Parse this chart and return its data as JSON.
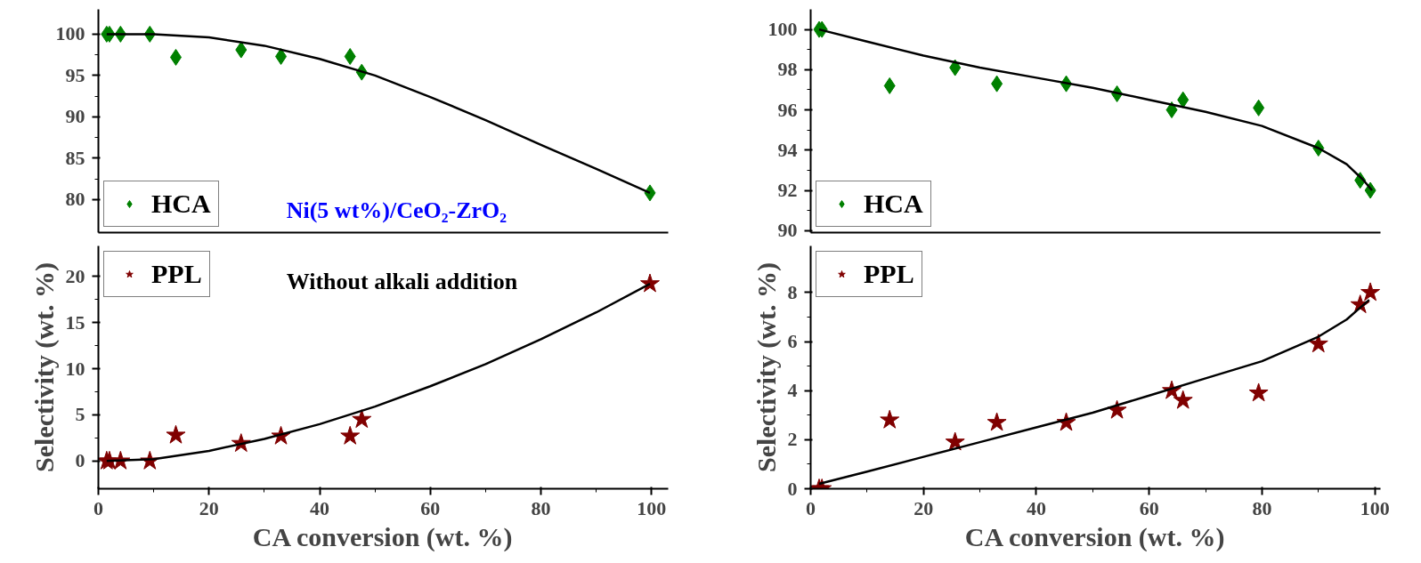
{
  "chart_data": [
    {
      "type": "scatter",
      "xlim": [
        0,
        103
      ],
      "ylim": [
        76,
        103
      ],
      "yticks": [
        80,
        85,
        90,
        95,
        100
      ],
      "tick_labels": "y",
      "legend": "bottom left",
      "annotations": [
        "Ni(5 wt%)/CeO₂-ZrO₂"
      ],
      "series": [
        {
          "name": "HCA",
          "color": "#008000",
          "marker": "diamond",
          "x": [
            1.5,
            2,
            4,
            9.3,
            14,
            25.8,
            33,
            45.5,
            47.6,
            99.7
          ],
          "values": [
            100,
            100,
            100,
            100,
            97.2,
            98.1,
            97.3,
            97.3,
            95.4,
            80.8
          ]
        },
        {
          "type": "line",
          "color": "#000000",
          "marker": "none",
          "x": [
            1.5,
            10,
            20,
            30,
            40,
            50,
            60,
            70,
            80,
            90,
            99.7
          ],
          "values": [
            100,
            100,
            99.6,
            98.6,
            97.0,
            95.0,
            92.4,
            89.6,
            86.6,
            83.7,
            80.8
          ]
        }
      ]
    },
    {
      "type": "scatter",
      "xlim": [
        0,
        103
      ],
      "ylim": [
        -3,
        23.3
      ],
      "xticks": [
        0,
        20,
        40,
        60,
        80,
        100
      ],
      "yticks": [
        0,
        5,
        10,
        15,
        20
      ],
      "xlabel": "CA conversion (wt. %)",
      "ylabel": "Selectivity (wt. %)",
      "legend": "top left",
      "annotations": [
        "Without alkali addition"
      ],
      "series": [
        {
          "name": "PPL",
          "color": "#800000",
          "marker": "star",
          "x": [
            1.5,
            2,
            4,
            9.3,
            14,
            25.8,
            33,
            45.5,
            47.6,
            99.7
          ],
          "values": [
            0,
            0,
            0,
            0,
            2.8,
            1.9,
            2.7,
            2.7,
            4.5,
            19.2
          ]
        },
        {
          "type": "line",
          "color": "#000000",
          "marker": "none",
          "x": [
            1.5,
            10,
            20,
            30,
            40,
            50,
            60,
            70,
            80,
            90,
            99.7
          ],
          "values": [
            0,
            0.2,
            1.1,
            2.4,
            4.0,
            5.9,
            8.1,
            10.5,
            13.2,
            16.1,
            19.2
          ]
        }
      ]
    },
    {
      "type": "scatter",
      "xlim": [
        0,
        101
      ],
      "ylim": [
        89.9,
        101
      ],
      "yticks": [
        90,
        92,
        94,
        96,
        98,
        100
      ],
      "tick_labels": "y",
      "legend": "bottom left",
      "series": [
        {
          "name": "HCA",
          "color": "#008000",
          "marker": "diamond",
          "x": [
            1.5,
            2,
            14,
            25.6,
            33,
            45.3,
            54.3,
            64,
            66,
            79.4,
            90,
            97.4,
            99.2
          ],
          "values": [
            100,
            100,
            97.2,
            98.1,
            97.3,
            97.3,
            96.8,
            96.0,
            96.5,
            96.1,
            94.1,
            92.5,
            92.0
          ]
        },
        {
          "type": "line",
          "color": "#000000",
          "marker": "none",
          "x": [
            1.5,
            10,
            20,
            30,
            40,
            50,
            60,
            70,
            80,
            90,
            95,
            98,
            99.5
          ],
          "values": [
            100,
            99.4,
            98.7,
            98.1,
            97.6,
            97.1,
            96.5,
            95.9,
            95.2,
            94.1,
            93.3,
            92.5,
            92.0
          ]
        }
      ]
    },
    {
      "type": "scatter",
      "xlim": [
        0,
        101
      ],
      "ylim": [
        0,
        9.9
      ],
      "xticks": [
        0,
        20,
        40,
        60,
        80,
        100
      ],
      "yticks": [
        0,
        2,
        4,
        6,
        8
      ],
      "xlabel": "CA conversion (wt. %)",
      "ylabel": "Selectivity (wt. %)",
      "legend": "top left",
      "series": [
        {
          "name": "PPL",
          "color": "#800000",
          "marker": "star",
          "x": [
            1.5,
            2,
            14,
            25.6,
            33,
            45.3,
            54.3,
            64,
            66,
            79.4,
            90,
            97.4,
            99.2
          ],
          "values": [
            0,
            0,
            2.8,
            1.9,
            2.7,
            2.7,
            3.2,
            4.0,
            3.6,
            3.9,
            5.9,
            7.5,
            8.0
          ]
        },
        {
          "type": "line",
          "color": "#000000",
          "marker": "none",
          "x": [
            1.5,
            10,
            20,
            30,
            40,
            50,
            60,
            70,
            80,
            90,
            95,
            99
          ],
          "values": [
            0.2,
            0.7,
            1.3,
            1.9,
            2.5,
            3.1,
            3.8,
            4.5,
            5.2,
            6.2,
            6.9,
            7.7
          ]
        }
      ]
    }
  ]
}
